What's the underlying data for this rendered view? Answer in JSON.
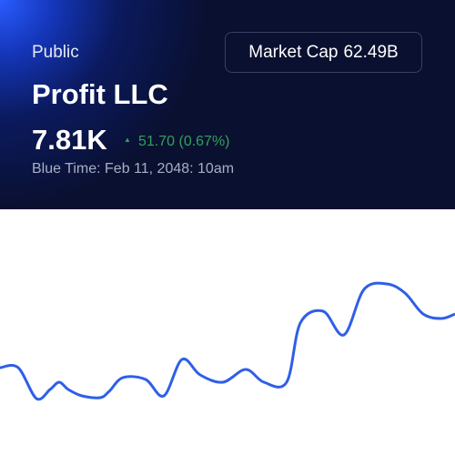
{
  "header": {
    "label": "Public",
    "name": "Profit LLC",
    "price": "7.81K",
    "change": "51.70 (0.67%)",
    "time": "Blue Time: Feb 11, 2048: 10am",
    "market_cap_label": "Market Cap",
    "market_cap_value": "62.49B"
  },
  "chart_data": {
    "type": "line",
    "color": "#2f5fe8",
    "x": [
      0,
      20,
      40,
      55,
      65,
      75,
      90,
      110,
      120,
      135,
      160,
      180,
      200,
      220,
      245,
      270,
      290,
      315,
      330,
      355,
      378,
      400,
      425,
      445,
      465,
      485,
      500
    ],
    "values": [
      96,
      96,
      62,
      72,
      80,
      72,
      65,
      63,
      70,
      85,
      83,
      65,
      105,
      88,
      80,
      94,
      80,
      80,
      145,
      158,
      132,
      182,
      188,
      178,
      155,
      150,
      155
    ],
    "xlim": [
      0,
      500
    ],
    "ylim": [
      0,
      270
    ]
  }
}
